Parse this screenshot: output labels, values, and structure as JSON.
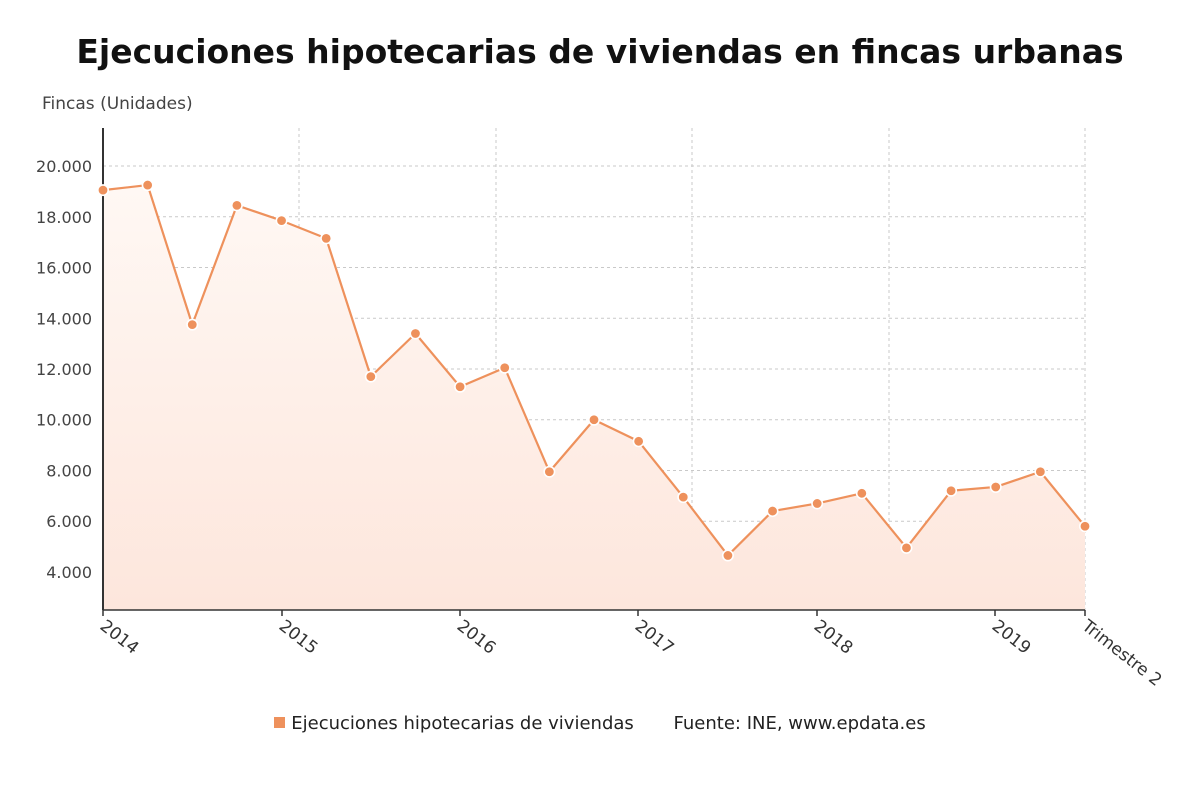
{
  "title": "Ejecuciones hipotecarias de viviendas en fincas urbanas",
  "source": "Fuente: INE, www.epdata.es",
  "colors": {
    "series": "#ee915c",
    "area_top": "#fff8f4",
    "area_bottom": "#fde6dc",
    "grid": "#c9c9c9",
    "axis": "#333333"
  },
  "chart_data": {
    "type": "line",
    "title": "Ejecuciones hipotecarias de viviendas en fincas urbanas",
    "ylabel": "Fincas (Unidades)",
    "xlabel": "",
    "ylim": [
      2500,
      21500
    ],
    "yticks": [
      4000,
      6000,
      8000,
      10000,
      12000,
      14000,
      16000,
      18000,
      20000
    ],
    "ytick_labels": [
      "4.000",
      "6.000",
      "8.000",
      "10.000",
      "12.000",
      "14.000",
      "16.000",
      "18.000",
      "20.000"
    ],
    "x_tick_labels": [
      "2014",
      "2015",
      "2016",
      "2017",
      "2018",
      "2019",
      "Trimestre 2"
    ],
    "grid": true,
    "legend": "bottom-center",
    "area_fill": true,
    "series": [
      {
        "name": "Ejecuciones hipotecarias de viviendas",
        "values": [
          19050,
          19250,
          13750,
          18450,
          17850,
          17150,
          11700,
          13400,
          11300,
          12050,
          7950,
          10000,
          9150,
          6950,
          4650,
          6400,
          6700,
          7100,
          4950,
          7200,
          7350,
          7950,
          5800
        ]
      }
    ]
  }
}
